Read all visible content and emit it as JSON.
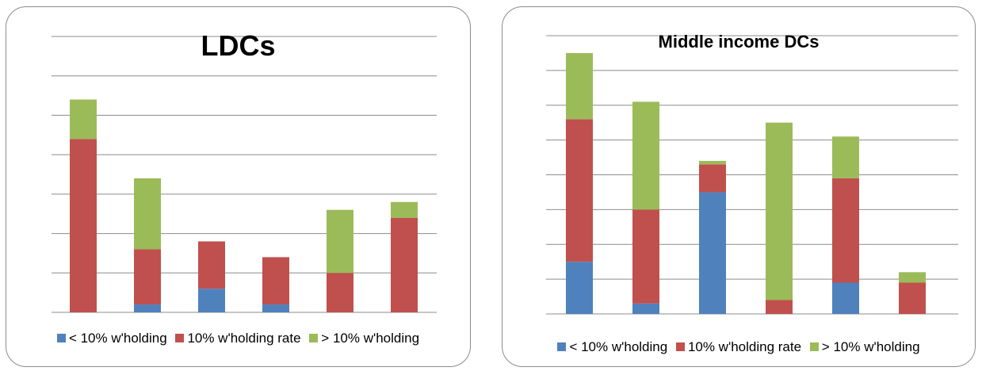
{
  "colors": {
    "series": [
      "#4f81bd",
      "#c0504d",
      "#9bbb59"
    ],
    "grid": "#8c8c8c",
    "border": "#8c8c8c"
  },
  "chart_data": [
    {
      "type": "bar",
      "stacked": true,
      "title": "LDCs",
      "xlabel": "",
      "ylabel": "",
      "ylim": [
        0,
        7
      ],
      "grid": true,
      "legend_position": "bottom",
      "categories": [
        "",
        "",
        "",
        "",
        "",
        ""
      ],
      "series": [
        {
          "name": "< 10% w'holding",
          "values": [
            0,
            0.2,
            0.6,
            0.2,
            0,
            0
          ]
        },
        {
          "name": "10% w'holding rate",
          "values": [
            4.4,
            1.4,
            1.2,
            1.2,
            1.0,
            2.4
          ]
        },
        {
          "name": "> 10% w'holding",
          "values": [
            1.0,
            1.8,
            0,
            0,
            1.6,
            0.4
          ]
        }
      ]
    },
    {
      "type": "bar",
      "stacked": true,
      "title": "Middle income DCs",
      "xlabel": "",
      "ylabel": "",
      "ylim": [
        0,
        8
      ],
      "grid": true,
      "legend_position": "bottom",
      "categories": [
        "",
        "",
        "",
        "",
        "",
        ""
      ],
      "series": [
        {
          "name": "< 10% w'holding",
          "values": [
            1.5,
            0.3,
            3.5,
            0,
            0.9,
            0
          ]
        },
        {
          "name": "10% w'holding rate",
          "values": [
            4.1,
            2.7,
            0.8,
            0.4,
            3.0,
            0.9
          ]
        },
        {
          "name": "> 10% w'holding",
          "values": [
            1.9,
            3.1,
            0.1,
            5.1,
            1.2,
            0.3
          ]
        }
      ]
    }
  ]
}
